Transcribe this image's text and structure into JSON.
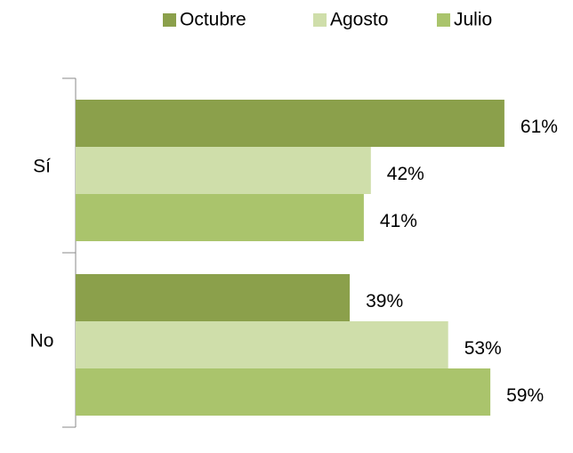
{
  "chart_data": {
    "type": "bar",
    "orientation": "horizontal",
    "categories": [
      "Sí",
      "No"
    ],
    "series": [
      {
        "name": "Octubre",
        "color": "#8ba04b",
        "values": [
          61,
          39
        ],
        "value_labels": [
          "61%",
          "39%"
        ]
      },
      {
        "name": "Agosto",
        "color": "#cfdeaa",
        "values": [
          42,
          53
        ],
        "value_labels": [
          "42%",
          "53%"
        ]
      },
      {
        "name": "Julio",
        "color": "#aac46c",
        "values": [
          41,
          59
        ],
        "value_labels": [
          "41%",
          "59%"
        ]
      }
    ],
    "legend": "top"
  }
}
